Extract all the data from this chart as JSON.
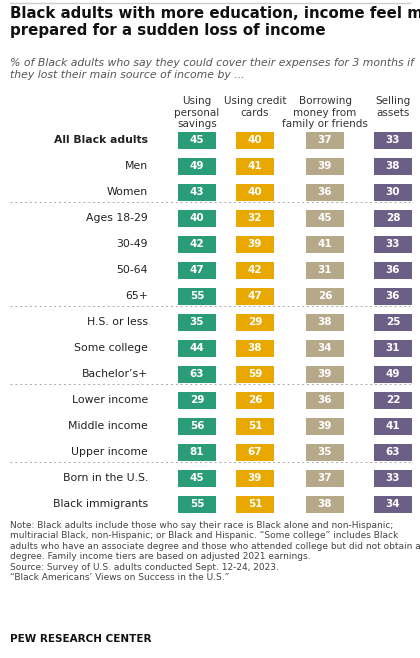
{
  "title": "Black adults with more education, income feel more\nprepared for a sudden loss of income",
  "subtitle": "% of Black adults who say they could cover their expenses for 3 months if\nthey lost their main source of income by ...",
  "col_headers": [
    "Using\npersonal\nsavings",
    "Using credit\ncards",
    "Borrowing\nmoney from\nfamily or friends",
    "Selling\nassets"
  ],
  "rows": [
    {
      "label": "All Black adults",
      "vals": [
        45,
        40,
        37,
        33
      ],
      "bold": true,
      "separator_before": false,
      "sep_thick": false
    },
    {
      "label": "Men",
      "vals": [
        49,
        41,
        39,
        38
      ],
      "bold": false,
      "separator_before": false,
      "sep_thick": false
    },
    {
      "label": "Women",
      "vals": [
        43,
        40,
        36,
        30
      ],
      "bold": false,
      "separator_before": false,
      "sep_thick": false
    },
    {
      "label": "Ages 18-29",
      "vals": [
        40,
        32,
        45,
        28
      ],
      "bold": false,
      "separator_before": true,
      "sep_thick": false
    },
    {
      "label": "30-49",
      "vals": [
        42,
        39,
        41,
        33
      ],
      "bold": false,
      "separator_before": false,
      "sep_thick": false
    },
    {
      "label": "50-64",
      "vals": [
        47,
        42,
        31,
        36
      ],
      "bold": false,
      "separator_before": false,
      "sep_thick": false
    },
    {
      "label": "65+",
      "vals": [
        55,
        47,
        26,
        36
      ],
      "bold": false,
      "separator_before": false,
      "sep_thick": false
    },
    {
      "label": "H.S. or less",
      "vals": [
        35,
        29,
        38,
        25
      ],
      "bold": false,
      "separator_before": true,
      "sep_thick": false
    },
    {
      "label": "Some college",
      "vals": [
        44,
        38,
        34,
        31
      ],
      "bold": false,
      "separator_before": false,
      "sep_thick": false
    },
    {
      "label": "Bachelor’s+",
      "vals": [
        63,
        59,
        39,
        49
      ],
      "bold": false,
      "separator_before": false,
      "sep_thick": false
    },
    {
      "label": "Lower income",
      "vals": [
        29,
        26,
        36,
        22
      ],
      "bold": false,
      "separator_before": true,
      "sep_thick": false
    },
    {
      "label": "Middle income",
      "vals": [
        56,
        51,
        39,
        41
      ],
      "bold": false,
      "separator_before": false,
      "sep_thick": false
    },
    {
      "label": "Upper income",
      "vals": [
        81,
        67,
        35,
        63
      ],
      "bold": false,
      "separator_before": false,
      "sep_thick": false
    },
    {
      "label": "Born in the U.S.",
      "vals": [
        45,
        39,
        37,
        33
      ],
      "bold": false,
      "separator_before": true,
      "sep_thick": false
    },
    {
      "label": "Black immigrants",
      "vals": [
        55,
        51,
        38,
        34
      ],
      "bold": false,
      "separator_before": false,
      "sep_thick": false
    }
  ],
  "col_colors": [
    "#2a9d78",
    "#e8a800",
    "#b5a98a",
    "#6b5f87"
  ],
  "note_text": "Note: Black adults include those who say their race is Black alone and non-Hispanic;\nmultiracial Black, non-Hispanic; or Black and Hispanic. “Some college” includes Black\nadults who have an associate degree and those who attended college but did not obtain a\ndegree. Family income tiers are based on adjusted 2021 earnings.\nSource: Survey of U.S. adults conducted Sept. 12-24, 2023.\n“Black Americans’ Views on Success in the U.S.”",
  "footer": "PEW RESEARCH CENTER",
  "bg_color": "#ffffff",
  "title_fontsize": 10.8,
  "subtitle_fontsize": 7.8,
  "label_fontsize": 7.8,
  "val_fontsize": 7.5,
  "header_fontsize": 7.5,
  "note_fontsize": 6.5,
  "footer_fontsize": 7.5
}
